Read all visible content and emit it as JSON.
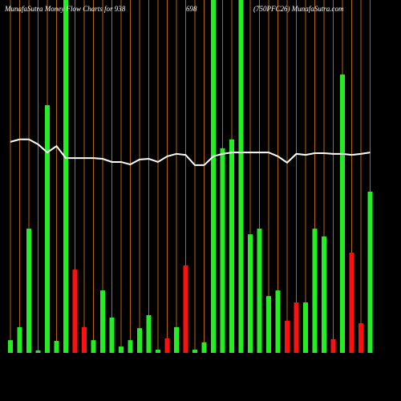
{
  "chart_data": {
    "type": "bar",
    "title_parts": [
      "MunafaSutra  Money Flow  Charts for 938",
      "698",
      "(750PFC26) MunafaSutra.com"
    ],
    "ylim": [
      0,
      100
    ],
    "grid_color": "#b5650f",
    "values": [
      3.6,
      7.3,
      35.2,
      0.7,
      70.2,
      3.4,
      100,
      23.6,
      7.3,
      3.6,
      17.7,
      10,
      1.8,
      3.6,
      7,
      10.7,
      0.9,
      4.1,
      7.3,
      24.8,
      0.9,
      3,
      100,
      58,
      60.5,
      100,
      33.6,
      35.2,
      16.1,
      17.7,
      9.1,
      14.3,
      14.3,
      35.2,
      33,
      3.9,
      78.9,
      28.4,
      8.4,
      45.7
    ],
    "colors": [
      "#22ee22",
      "#22ee22",
      "#22ee22",
      "#22ee22",
      "#22ee22",
      "#22ee22",
      "#22ee22",
      "#ff1010",
      "#ff1010",
      "#22ee22",
      "#22ee22",
      "#22ee22",
      "#22ee22",
      "#22ee22",
      "#22ee22",
      "#22ee22",
      "#22ee22",
      "#ff1010",
      "#22ee22",
      "#ff1010",
      "#22ee22",
      "#22ee22",
      "#22ee22",
      "#22ee22",
      "#22ee22",
      "#22ee22",
      "#22ee22",
      "#22ee22",
      "#22ee22",
      "#22ee22",
      "#ff1010",
      "#ff1010",
      "#22ee22",
      "#22ee22",
      "#22ee22",
      "#ff1010",
      "#22ee22",
      "#ff1010",
      "#ff1010",
      "#22ee22"
    ],
    "line": {
      "color": "#ffffff",
      "values": [
        59.8,
        60.5,
        60.5,
        59.1,
        56.8,
        58.6,
        55.2,
        55.2,
        55.2,
        55.2,
        55,
        54.1,
        54.1,
        53.4,
        54.8,
        55,
        54.1,
        55.7,
        56.4,
        56.1,
        53.2,
        53.2,
        55.7,
        56.4,
        56.8,
        56.8,
        56.8,
        56.8,
        56.8,
        55.7,
        53.9,
        56.4,
        56.1,
        56.6,
        56.6,
        56.4,
        56.4,
        56.1,
        56.4,
        56.8
      ]
    }
  }
}
